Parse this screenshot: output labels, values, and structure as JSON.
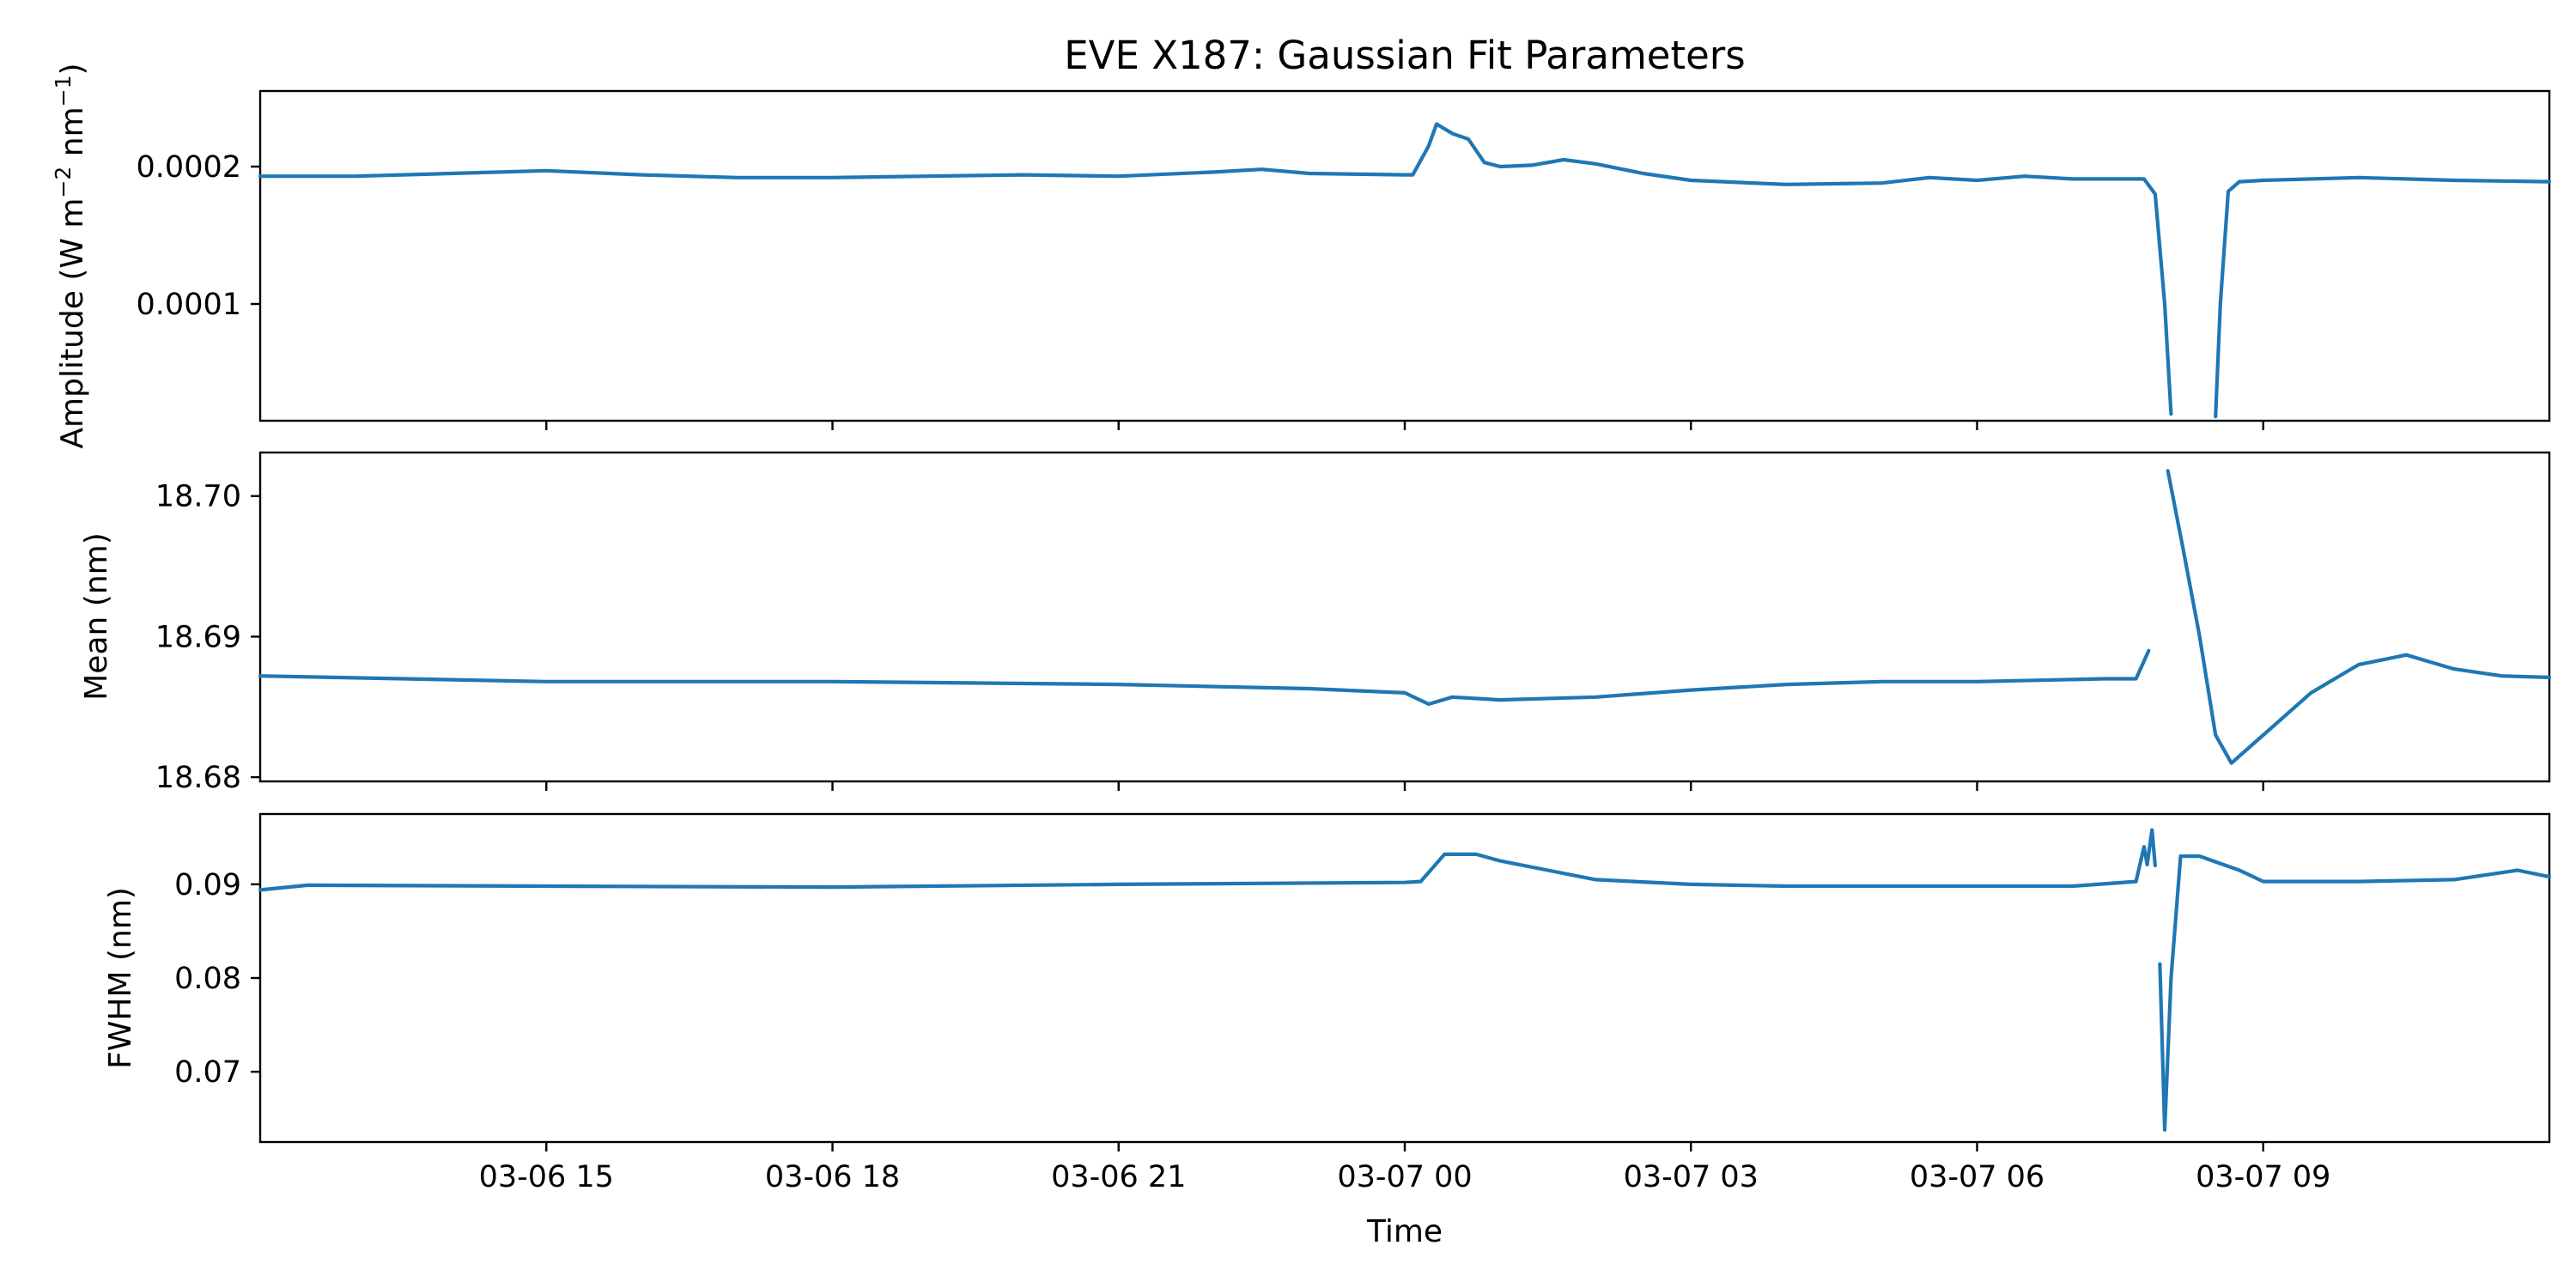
{
  "chart_data": {
    "type": "line",
    "title": "EVE X187: Gaussian Fit Parameters",
    "xlabel": "Time",
    "x_range": [
      "2024-03-06 12:00",
      "2024-03-07 12:00"
    ],
    "x_ticks": [
      "2024-03-06 15:00",
      "2024-03-06 18:00",
      "2024-03-06 21:00",
      "2024-03-07 00:00",
      "2024-03-07 03:00",
      "2024-03-07 06:00",
      "2024-03-07 09:00"
    ],
    "x_tick_labels": [
      "03-06 15",
      "03-06 18",
      "03-06 21",
      "03-07 00",
      "03-07 03",
      "03-07 06",
      "03-07 09"
    ],
    "shared_x": true,
    "grid": false,
    "line_color": "#1f77b4",
    "panels": [
      {
        "id": "amplitude",
        "ylabel_main": "Amplitude (W m",
        "ylabel_sup1": "−2",
        "ylabel_mid": " nm",
        "ylabel_sup2": "−1",
        "ylabel_end": ")",
        "ylim": [
          1.5e-05,
          0.000255
        ],
        "y_ticks": [
          0.0001,
          0.0002
        ],
        "y_tick_labels": [
          "0.0001",
          "0.0002"
        ],
        "series": [
          {
            "segments": [
              [
                [
                  "2024-03-06 12:00",
                  0.000193
                ],
                [
                  "2024-03-06 13:00",
                  0.000193
                ],
                [
                  "2024-03-06 14:00",
                  0.000195
                ],
                [
                  "2024-03-06 15:00",
                  0.000197
                ],
                [
                  "2024-03-06 16:00",
                  0.000194
                ],
                [
                  "2024-03-06 17:00",
                  0.000192
                ],
                [
                  "2024-03-06 18:00",
                  0.000192
                ],
                [
                  "2024-03-06 19:00",
                  0.000193
                ],
                [
                  "2024-03-06 20:00",
                  0.000194
                ],
                [
                  "2024-03-06 21:00",
                  0.000193
                ],
                [
                  "2024-03-06 22:00",
                  0.000196
                ],
                [
                  "2024-03-06 22:30",
                  0.000198
                ],
                [
                  "2024-03-06 23:00",
                  0.000195
                ],
                [
                  "2024-03-07 00:00",
                  0.000194
                ],
                [
                  "2024-03-07 00:05",
                  0.000194
                ],
                [
                  "2024-03-07 00:15",
                  0.000215
                ],
                [
                  "2024-03-07 00:20",
                  0.000231
                ],
                [
                  "2024-03-07 00:30",
                  0.000224
                ],
                [
                  "2024-03-07 00:40",
                  0.00022
                ],
                [
                  "2024-03-07 00:50",
                  0.000203
                ],
                [
                  "2024-03-07 01:00",
                  0.0002
                ],
                [
                  "2024-03-07 01:20",
                  0.000201
                ],
                [
                  "2024-03-07 01:40",
                  0.000205
                ],
                [
                  "2024-03-07 02:00",
                  0.000202
                ],
                [
                  "2024-03-07 02:30",
                  0.000195
                ],
                [
                  "2024-03-07 03:00",
                  0.00019
                ],
                [
                  "2024-03-07 04:00",
                  0.000187
                ],
                [
                  "2024-03-07 05:00",
                  0.000188
                ],
                [
                  "2024-03-07 05:30",
                  0.000192
                ],
                [
                  "2024-03-07 06:00",
                  0.00019
                ],
                [
                  "2024-03-07 06:30",
                  0.000193
                ],
                [
                  "2024-03-07 07:00",
                  0.000191
                ],
                [
                  "2024-03-07 07:45",
                  0.000191
                ],
                [
                  "2024-03-07 07:52",
                  0.00018
                ],
                [
                  "2024-03-07 07:58",
                  0.0001
                ],
                [
                  "2024-03-07 08:02",
                  2e-05
                ]
              ],
              [
                [
                  "2024-03-07 08:30",
                  1.8e-05
                ],
                [
                  "2024-03-07 08:33",
                  0.0001
                ],
                [
                  "2024-03-07 08:38",
                  0.000182
                ],
                [
                  "2024-03-07 08:45",
                  0.000189
                ],
                [
                  "2024-03-07 09:00",
                  0.00019
                ],
                [
                  "2024-03-07 10:00",
                  0.000192
                ],
                [
                  "2024-03-07 11:00",
                  0.00019
                ],
                [
                  "2024-03-07 12:00",
                  0.000189
                ]
              ]
            ]
          }
        ]
      },
      {
        "id": "mean",
        "ylabel": "Mean (nm)",
        "ylim": [
          18.6797,
          18.7031
        ],
        "y_ticks": [
          18.68,
          18.69,
          18.7
        ],
        "y_tick_labels": [
          "18.68",
          "18.69",
          "18.70"
        ],
        "series": [
          {
            "segments": [
              [
                [
                  "2024-03-06 12:00",
                  18.6872
                ],
                [
                  "2024-03-06 15:00",
                  18.6868
                ],
                [
                  "2024-03-06 18:00",
                  18.6868
                ],
                [
                  "2024-03-06 21:00",
                  18.6866
                ],
                [
                  "2024-03-06 23:00",
                  18.6863
                ],
                [
                  "2024-03-07 00:00",
                  18.686
                ],
                [
                  "2024-03-07 00:15",
                  18.6852
                ],
                [
                  "2024-03-07 00:30",
                  18.6857
                ],
                [
                  "2024-03-07 01:00",
                  18.6855
                ],
                [
                  "2024-03-07 02:00",
                  18.6857
                ],
                [
                  "2024-03-07 03:00",
                  18.6862
                ],
                [
                  "2024-03-07 04:00",
                  18.6866
                ],
                [
                  "2024-03-07 05:00",
                  18.6868
                ],
                [
                  "2024-03-07 06:00",
                  18.6868
                ],
                [
                  "2024-03-07 07:20",
                  18.687
                ],
                [
                  "2024-03-07 07:40",
                  18.687
                ],
                [
                  "2024-03-07 07:48",
                  18.689
                ]
              ],
              [
                [
                  "2024-03-07 08:00",
                  18.7018
                ],
                [
                  "2024-03-07 08:10",
                  18.696
                ],
                [
                  "2024-03-07 08:20",
                  18.69
                ],
                [
                  "2024-03-07 08:30",
                  18.683
                ],
                [
                  "2024-03-07 08:40",
                  18.681
                ],
                [
                  "2024-03-07 09:00",
                  18.683
                ],
                [
                  "2024-03-07 09:30",
                  18.686
                ],
                [
                  "2024-03-07 10:00",
                  18.688
                ],
                [
                  "2024-03-07 10:30",
                  18.6887
                ],
                [
                  "2024-03-07 11:00",
                  18.6877
                ],
                [
                  "2024-03-07 11:30",
                  18.6872
                ],
                [
                  "2024-03-07 12:00",
                  18.6871
                ]
              ]
            ]
          }
        ]
      },
      {
        "id": "fwhm",
        "ylabel": "FWHM (nm)",
        "ylim": [
          0.0625,
          0.0975
        ],
        "y_ticks": [
          0.07,
          0.08,
          0.09
        ],
        "y_tick_labels": [
          "0.07",
          "0.08",
          "0.09"
        ],
        "series": [
          {
            "segments": [
              [
                [
                  "2024-03-06 12:00",
                  0.0894
                ],
                [
                  "2024-03-06 12:30",
                  0.0899
                ],
                [
                  "2024-03-06 15:00",
                  0.0898
                ],
                [
                  "2024-03-06 18:00",
                  0.0897
                ],
                [
                  "2024-03-06 21:00",
                  0.09
                ],
                [
                  "2024-03-07 00:00",
                  0.0902
                ],
                [
                  "2024-03-07 00:10",
                  0.0903
                ],
                [
                  "2024-03-07 00:25",
                  0.0932
                ],
                [
                  "2024-03-07 00:45",
                  0.0932
                ],
                [
                  "2024-03-07 01:00",
                  0.0925
                ],
                [
                  "2024-03-07 01:30",
                  0.0915
                ],
                [
                  "2024-03-07 02:00",
                  0.0905
                ],
                [
                  "2024-03-07 03:00",
                  0.09
                ],
                [
                  "2024-03-07 04:00",
                  0.0898
                ],
                [
                  "2024-03-07 07:00",
                  0.0898
                ],
                [
                  "2024-03-07 07:40",
                  0.0903
                ],
                [
                  "2024-03-07 07:45",
                  0.094
                ],
                [
                  "2024-03-07 07:47",
                  0.0921
                ],
                [
                  "2024-03-07 07:50",
                  0.0958
                ],
                [
                  "2024-03-07 07:52",
                  0.092
                ]
              ],
              [
                [
                  "2024-03-07 07:55",
                  0.0815
                ],
                [
                  "2024-03-07 07:58",
                  0.0638
                ],
                [
                  "2024-03-07 08:02",
                  0.08
                ],
                [
                  "2024-03-07 08:08",
                  0.093
                ],
                [
                  "2024-03-07 08:20",
                  0.093
                ],
                [
                  "2024-03-07 08:45",
                  0.0915
                ],
                [
                  "2024-03-07 09:00",
                  0.0903
                ],
                [
                  "2024-03-07 10:00",
                  0.0903
                ],
                [
                  "2024-03-07 11:00",
                  0.0905
                ],
                [
                  "2024-03-07 11:40",
                  0.0915
                ],
                [
                  "2024-03-07 12:00",
                  0.0908
                ]
              ]
            ]
          }
        ]
      }
    ]
  }
}
